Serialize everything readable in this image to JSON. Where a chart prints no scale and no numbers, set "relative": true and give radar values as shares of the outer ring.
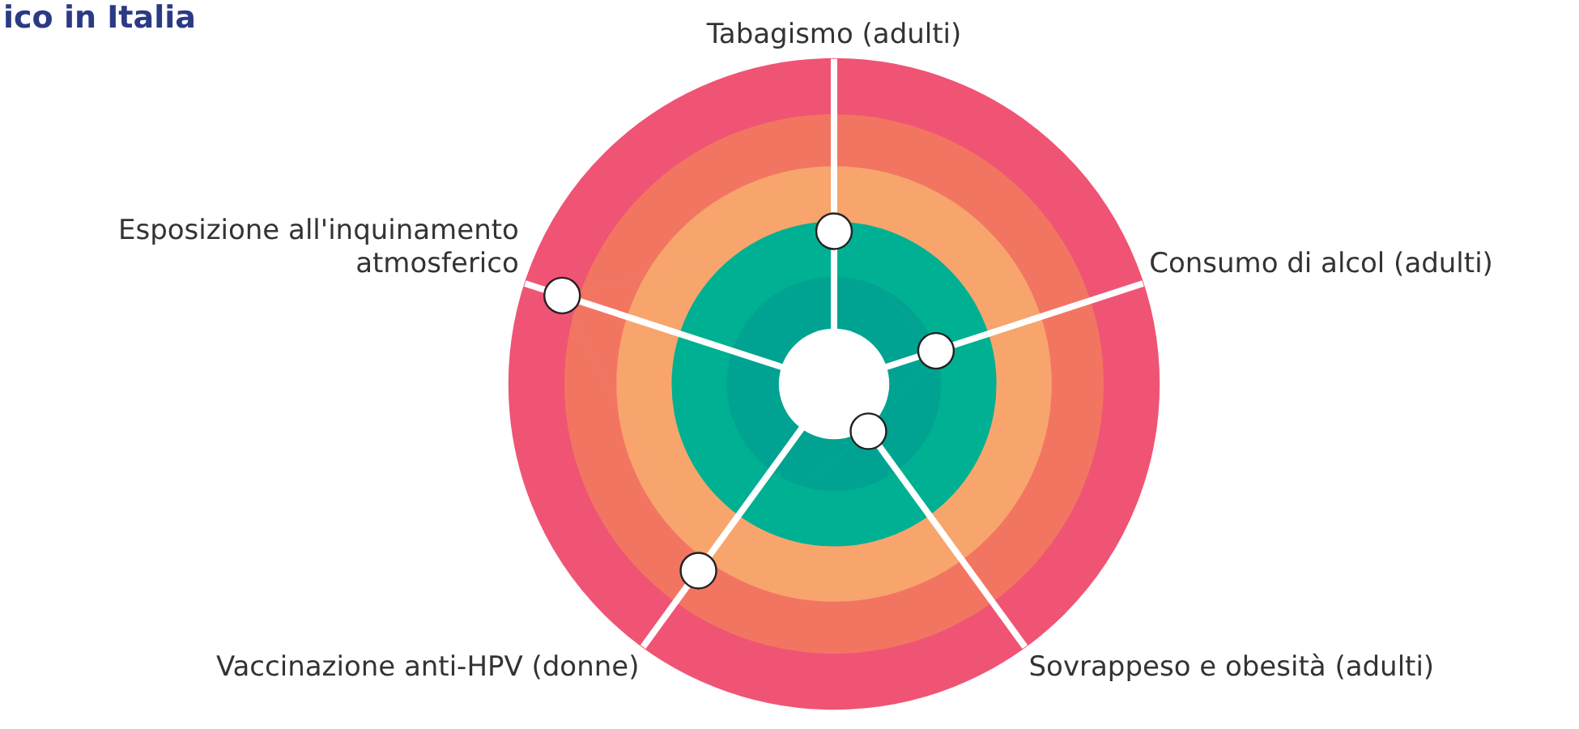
{
  "chart_data": {
    "type": "radar",
    "title": "ico in Italia",
    "relative": true,
    "categories": [
      "Tabagismo (adulti)",
      "Consumo di alcol (adulti)",
      "Sovrappeso e obesità (adulti)",
      "Vaccinazione anti-HPV (donne)",
      "Esposizione all'inquinamento atmosferico"
    ],
    "series": [
      {
        "color": "#ffffff",
        "values": [
          0.47,
          0.33,
          0.18,
          0.71,
          0.88
        ]
      }
    ],
    "marker": "circle",
    "legend": false
  }
}
